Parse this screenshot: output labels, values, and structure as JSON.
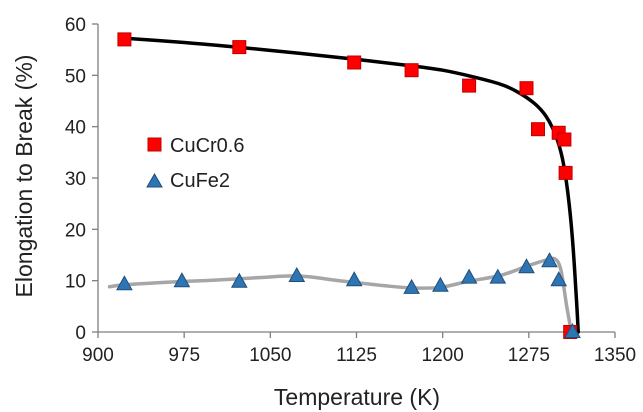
{
  "chart_data": {
    "type": "scatter",
    "title": "",
    "xlabel": "Temperature (K)",
    "ylabel": "Elongation to Break (%)",
    "xlim": [
      900,
      1350
    ],
    "ylim": [
      0,
      60
    ],
    "xticks": [
      900,
      975,
      1050,
      1125,
      1200,
      1275,
      1350
    ],
    "yticks": [
      0,
      10,
      20,
      30,
      40,
      50,
      60
    ],
    "grid": false,
    "legend_position": "center-left",
    "series": [
      {
        "name": "CuCr0.6",
        "marker": "square",
        "color": "#ff0000",
        "x": [
          923,
          1023,
          1123,
          1173,
          1223,
          1273,
          1283,
          1301,
          1306,
          1307,
          1311
        ],
        "y": [
          57,
          55.5,
          52.5,
          51,
          48,
          47.5,
          39.5,
          38.8,
          37.5,
          31,
          0
        ]
      },
      {
        "name": "CuFe2",
        "marker": "triangle",
        "color": "#2e75b6",
        "x": [
          923,
          973,
          1023,
          1073,
          1123,
          1173,
          1198,
          1223,
          1248,
          1273,
          1293,
          1301,
          1313
        ],
        "y": [
          9.3,
          9.9,
          9.8,
          10.9,
          10.1,
          8.6,
          9,
          10.6,
          10.6,
          12.6,
          13.8,
          10.1,
          0
        ]
      }
    ],
    "trendlines": [
      {
        "series": "CuCr0.6",
        "color": "#000000",
        "x": [
          920,
          975,
          1025,
          1075,
          1125,
          1175,
          1200,
          1225,
          1250,
          1265,
          1280,
          1290,
          1298,
          1304,
          1309,
          1313,
          1316,
          1318
        ],
        "y": [
          57.3,
          56.4,
          55.4,
          54.3,
          53.1,
          51.8,
          51.0,
          49.8,
          48.3,
          46.8,
          44.5,
          42.0,
          38.5,
          34.0,
          27.0,
          18.0,
          8.0,
          0
        ]
      },
      {
        "series": "CuFe2",
        "color": "#a6a6a6",
        "x": [
          910,
          923,
          960,
          1000,
          1040,
          1075,
          1110,
          1150,
          1173,
          1198,
          1223,
          1250,
          1273,
          1290,
          1298,
          1303,
          1308,
          1312
        ],
        "y": [
          8.8,
          9.2,
          9.7,
          10.1,
          10.6,
          10.9,
          10.0,
          9.0,
          8.6,
          8.7,
          9.9,
          11.0,
          12.8,
          14.0,
          14.2,
          12.0,
          5.0,
          0
        ]
      }
    ]
  }
}
